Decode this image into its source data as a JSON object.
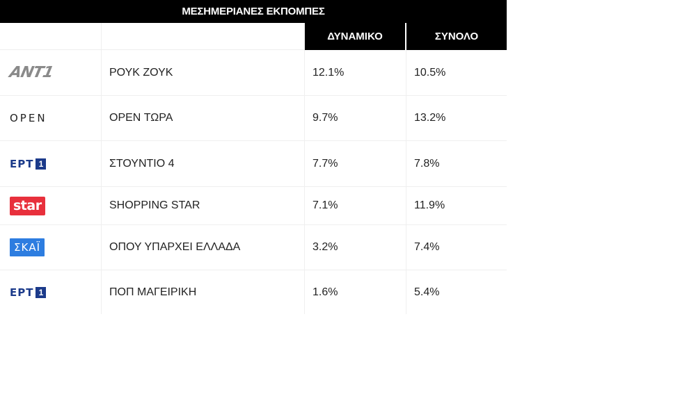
{
  "table": {
    "title": "ΜΕΣΗΜΕΡΙΑΝΕΣ ΕΚΠΟΜΠΕΣ",
    "headers": {
      "col1": "",
      "col2": "",
      "col3": "ΔΥΝΑΜΙΚΟ",
      "col4": "ΣΥΝΟΛΟ"
    },
    "rows": [
      {
        "channel": "ANT1",
        "logo_text": "ANT1",
        "show": "ΡΟΥΚ ΖΟΥΚ",
        "dynamiko": "12.1%",
        "synolo": "10.5%"
      },
      {
        "channel": "OPEN",
        "logo_text": "OPEN",
        "show": "OPEN ΤΩΡΑ",
        "dynamiko": "9.7%",
        "synolo": "13.2%"
      },
      {
        "channel": "ERT1",
        "logo_text": "ΕΡΤ",
        "logo_num": "1",
        "show": "ΣΤΟΥΝΤΙΟ 4",
        "dynamiko": "7.7%",
        "synolo": "7.8%"
      },
      {
        "channel": "STAR",
        "logo_text": "star",
        "show": "SHOPPING STAR",
        "dynamiko": "7.1%",
        "synolo": "11.9%"
      },
      {
        "channel": "SKAI",
        "logo_text": "ΣΚΑΪ",
        "show": "ΟΠΟΥ ΥΠΑΡΧΕΙ ΕΛΛΑΔΑ",
        "dynamiko": "3.2%",
        "synolo": "7.4%"
      },
      {
        "channel": "ERT1",
        "logo_text": "ΕΡΤ",
        "logo_num": "1",
        "show": "ΠΟΠ ΜΑΓΕΙΡΙΚΗ",
        "dynamiko": "1.6%",
        "synolo": "5.4%"
      }
    ]
  },
  "colors": {
    "header_bg": "#000000",
    "header_text": "#ffffff",
    "star_red": "#e8303c",
    "skai_blue": "#2d7de0",
    "ert_blue": "#1b3a8a"
  }
}
